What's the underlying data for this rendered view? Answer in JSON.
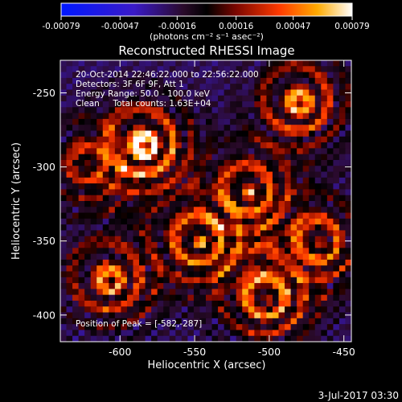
{
  "chart_data": {
    "type": "heatmap",
    "title": "Reconstructed RHESSI Image",
    "xlabel": "Heliocentric X (arcsec)",
    "ylabel": "Heliocentric Y (arcsec)",
    "xlim": [
      -640,
      -445
    ],
    "ylim": [
      -418,
      -228
    ],
    "x_ticks": [
      "-600",
      "-550",
      "-500",
      "-450"
    ],
    "x_tick_values": [
      -600,
      -550,
      -500,
      -450
    ],
    "y_ticks": [
      "-250",
      "-300",
      "-350",
      "-400"
    ],
    "y_tick_values": [
      -250,
      -300,
      -350,
      -400
    ],
    "colorbar": {
      "ticks": [
        "-0.00079",
        "-0.00047",
        "-0.00016",
        "0.00016",
        "0.00047",
        "0.00079"
      ],
      "tick_values": [
        -0.00079,
        -0.00047,
        -0.00016,
        0.00016,
        0.00047,
        0.00079
      ],
      "units": "(photons cm⁻² s⁻¹ asec⁻²)",
      "range": [
        -0.00079,
        0.00079
      ]
    },
    "annotations": [
      "20-Oct-2014 22:46:22.000 to 22:56:22.000",
      "Detectors: 3F 6F 9F, Att 1",
      "Energy Range: 50.0 - 100.0 keV",
      "Clean     Total counts: 1.63E+04"
    ],
    "peak_label": "Position of Peak = [-582,-287]",
    "sources": [
      {
        "x": -582,
        "y": -287,
        "intensity": 1.0
      },
      {
        "x": -478,
        "y": -258,
        "intensity": 0.85
      },
      {
        "x": -512,
        "y": -318,
        "intensity": 0.75
      },
      {
        "x": -545,
        "y": -352,
        "intensity": 0.8
      },
      {
        "x": -465,
        "y": -352,
        "intensity": 0.75
      },
      {
        "x": -605,
        "y": -378,
        "intensity": 0.8
      },
      {
        "x": -500,
        "y": -390,
        "intensity": 0.85
      },
      {
        "x": -620,
        "y": -300,
        "intensity": 0.55
      }
    ],
    "grid": false
  },
  "footer_date": "3-Jul-2017 03:30"
}
